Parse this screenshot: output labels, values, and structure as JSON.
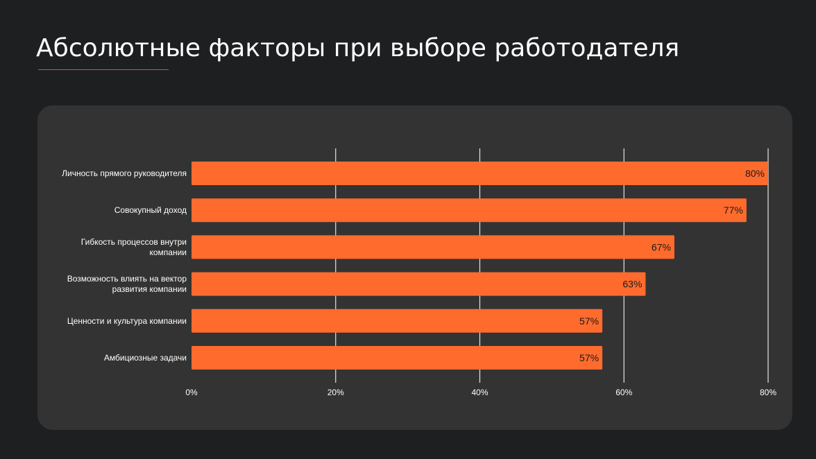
{
  "page": {
    "title": "Абсолютные факторы при выборе работодателя"
  },
  "colors": {
    "background": "#1e1f21",
    "card": "#333333",
    "bar": "#ff6b2d",
    "accent_line": "#c8582c",
    "gridline": "#e6e6e6",
    "text": "#ffffff",
    "value_text": "#1a1a1a"
  },
  "chart_data": {
    "type": "bar",
    "orientation": "horizontal",
    "categories": [
      [
        "Личность прямого руководителя"
      ],
      [
        "Совокупный доход"
      ],
      [
        "Гибкость процессов внутри",
        "компании"
      ],
      [
        "Возможность влиять на вектор",
        "развития компании"
      ],
      [
        "Ценности и культура компании"
      ],
      [
        "Амбициозные задачи"
      ]
    ],
    "values": [
      80,
      77,
      67,
      63,
      57,
      57
    ],
    "value_labels": [
      "80%",
      "77%",
      "67%",
      "63%",
      "57%",
      "57%"
    ],
    "xlim": [
      0,
      80
    ],
    "xticks": [
      0,
      20,
      40,
      60,
      80
    ],
    "xtick_labels": [
      "0%",
      "20%",
      "40%",
      "60%",
      "80%"
    ],
    "grid": true,
    "legend": false,
    "title": "",
    "xlabel": "",
    "ylabel": ""
  }
}
